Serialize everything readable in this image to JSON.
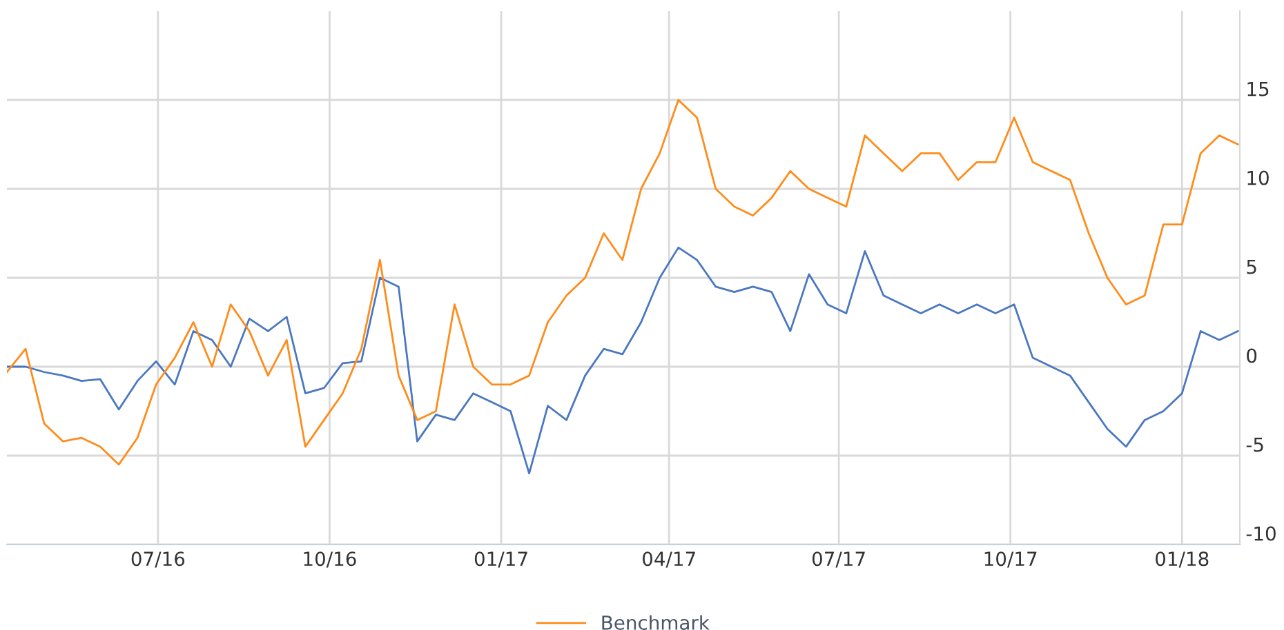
{
  "chart_data": {
    "type": "line",
    "xlim": [
      "2016-04-11",
      "2018-02-01"
    ],
    "ylim": [
      -10,
      20
    ],
    "xticks": [
      {
        "value": "2016-07-01",
        "label": "07/16"
      },
      {
        "value": "2016-10-01",
        "label": "10/16"
      },
      {
        "value": "2017-01-01",
        "label": "01/17"
      },
      {
        "value": "2017-04-01",
        "label": "04/17"
      },
      {
        "value": "2017-07-01",
        "label": "07/17"
      },
      {
        "value": "2017-10-01",
        "label": "10/17"
      },
      {
        "value": "2018-01-01",
        "label": "01/18"
      }
    ],
    "yticks": [
      -10,
      -5,
      0,
      5,
      10,
      15
    ],
    "grid": true,
    "legend": "bottom",
    "marker": "none",
    "line_style": "solid",
    "x": [
      "2016-04-11",
      "2016-04-21",
      "2016-05-01",
      "2016-05-11",
      "2016-05-21",
      "2016-05-31",
      "2016-06-10",
      "2016-06-20",
      "2016-06-30",
      "2016-07-10",
      "2016-07-20",
      "2016-07-30",
      "2016-08-09",
      "2016-08-19",
      "2016-08-29",
      "2016-09-08",
      "2016-09-18",
      "2016-09-28",
      "2016-10-08",
      "2016-10-18",
      "2016-10-28",
      "2016-11-07",
      "2016-11-17",
      "2016-11-27",
      "2016-12-07",
      "2016-12-17",
      "2016-12-27",
      "2017-01-06",
      "2017-01-16",
      "2017-01-26",
      "2017-02-05",
      "2017-02-15",
      "2017-02-25",
      "2017-03-07",
      "2017-03-17",
      "2017-03-27",
      "2017-04-06",
      "2017-04-16",
      "2017-04-26",
      "2017-05-06",
      "2017-05-16",
      "2017-05-26",
      "2017-06-05",
      "2017-06-15",
      "2017-06-25",
      "2017-07-05",
      "2017-07-15",
      "2017-07-25",
      "2017-08-04",
      "2017-08-14",
      "2017-08-24",
      "2017-09-03",
      "2017-09-13",
      "2017-09-23",
      "2017-10-03",
      "2017-10-13",
      "2017-10-23",
      "2017-11-02",
      "2017-11-12",
      "2017-11-22",
      "2017-12-02",
      "2017-12-12",
      "2017-12-22",
      "2018-01-01",
      "2018-01-11",
      "2018-01-21",
      "2018-01-31"
    ],
    "series": [
      {
        "color": "#4a78c0",
        "values": [
          0,
          0,
          -0.3,
          -0.5,
          -0.8,
          -0.7,
          -2.4,
          -0.8,
          0.3,
          -1,
          2,
          1.5,
          0,
          2.7,
          2,
          2.8,
          -1.5,
          -1.2,
          0.2,
          0.3,
          5,
          4.5,
          -4.2,
          -2.7,
          -3,
          -1.5,
          -2,
          -2.5,
          -6,
          -2.2,
          -3,
          -0.5,
          1,
          0.7,
          2.5,
          5,
          6.7,
          6,
          4.5,
          4.2,
          4.5,
          4.2,
          2,
          5.2,
          3.5,
          3,
          6.5,
          4,
          3.5,
          3,
          3.5,
          3,
          3.5,
          3,
          3.5,
          0.5,
          0,
          -0.5,
          -2,
          -3.5,
          -4.5,
          -3,
          -2.5,
          -1.5,
          2,
          1.5,
          2
        ]
      },
      {
        "name": "Benchmark",
        "color": "#ff8c1a",
        "values": [
          -0.3,
          1,
          -3.2,
          -4.2,
          -4,
          -4.5,
          -5.5,
          -4,
          -1,
          0.5,
          2.5,
          0,
          3.5,
          2,
          -0.5,
          1.5,
          -4.5,
          -3,
          -1.5,
          1,
          6,
          -0.5,
          -3,
          -2.5,
          3.5,
          0,
          -1,
          -1,
          -0.5,
          2.5,
          4,
          5,
          7.5,
          6,
          10,
          12,
          15,
          14,
          10,
          9,
          8.5,
          9.5,
          11,
          10,
          9.5,
          9,
          13,
          12,
          11,
          12,
          12,
          10.5,
          11.5,
          11.5,
          14,
          11.5,
          11,
          10.5,
          7.5,
          5,
          3.5,
          4,
          8,
          8,
          12,
          13,
          12.5
        ]
      }
    ]
  }
}
